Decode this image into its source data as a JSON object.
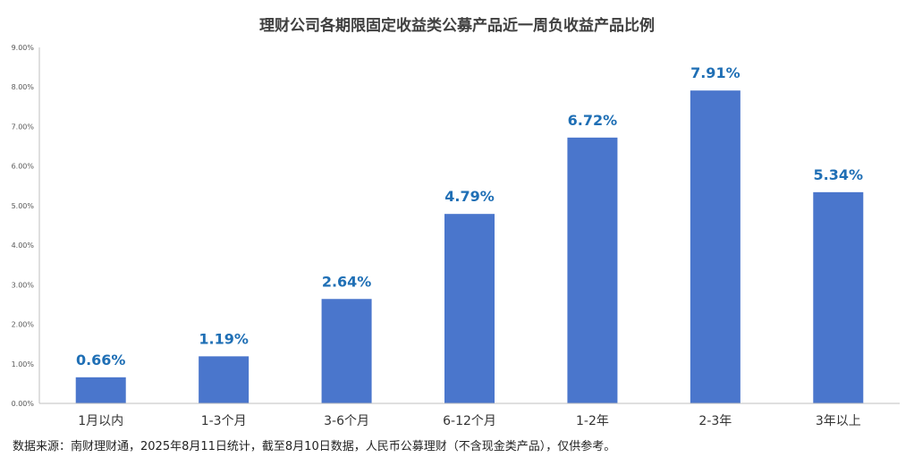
{
  "chart_data": {
    "type": "bar",
    "title": "理财公司各期限固定收益类公募产品近一周负收益产品比例",
    "categories": [
      "1月以内",
      "1-3个月",
      "3-6个月",
      "6-12个月",
      "1-2年",
      "2-3年",
      "3年以上"
    ],
    "values": [
      0.66,
      1.19,
      2.64,
      4.79,
      6.72,
      7.91,
      5.34
    ],
    "data_labels": [
      "0.66%",
      "1.19%",
      "2.64%",
      "4.79%",
      "6.72%",
      "7.91%",
      "5.34%"
    ],
    "y_ticks": [
      "0.00%",
      "1.00%",
      "2.00%",
      "3.00%",
      "4.00%",
      "5.00%",
      "6.00%",
      "7.00%",
      "8.00%",
      "9.00%"
    ],
    "ylim": [
      0,
      9
    ],
    "grid": false,
    "legend": "none",
    "bar_color": "#4a76cc",
    "label_color": "#1f6fb5"
  },
  "footer": {
    "source": "数据来源：南财理财通，2025年8月11日统计，截至8月10日数据，人民币公募理财（不含现金类产品），仅供参考。"
  }
}
